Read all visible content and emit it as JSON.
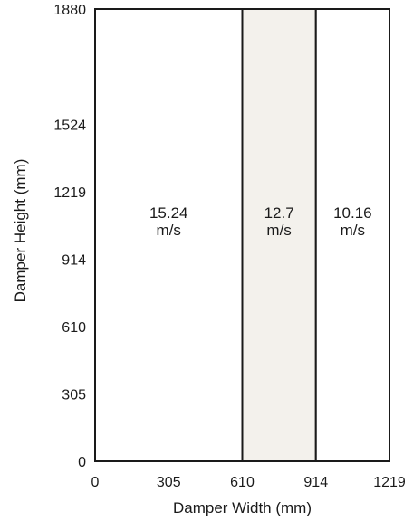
{
  "chart_data": {
    "type": "area",
    "title": "",
    "xlabel": "Damper Width (mm)",
    "ylabel": "Damper Height (mm)",
    "xlim": [
      0,
      1219
    ],
    "ylim": [
      0,
      1880
    ],
    "x_ticks": [
      0,
      305,
      610,
      914,
      1219
    ],
    "y_ticks": [
      0,
      305,
      610,
      914,
      1219,
      1524,
      1880
    ],
    "grid": false,
    "legend": "none",
    "regions": [
      {
        "x_start": 0,
        "x_end": 610,
        "velocity": "15.24",
        "unit": "m/s",
        "fill": "#ffffff"
      },
      {
        "x_start": 610,
        "x_end": 914,
        "velocity": "12.7",
        "unit": "m/s",
        "fill": "#f3f1ec"
      },
      {
        "x_start": 914,
        "x_end": 1219,
        "velocity": "10.16",
        "unit": "m/s",
        "fill": "#ffffff"
      }
    ],
    "colors": {
      "frame": "#1a1a1a",
      "highlight": "#f3f1ec"
    }
  }
}
